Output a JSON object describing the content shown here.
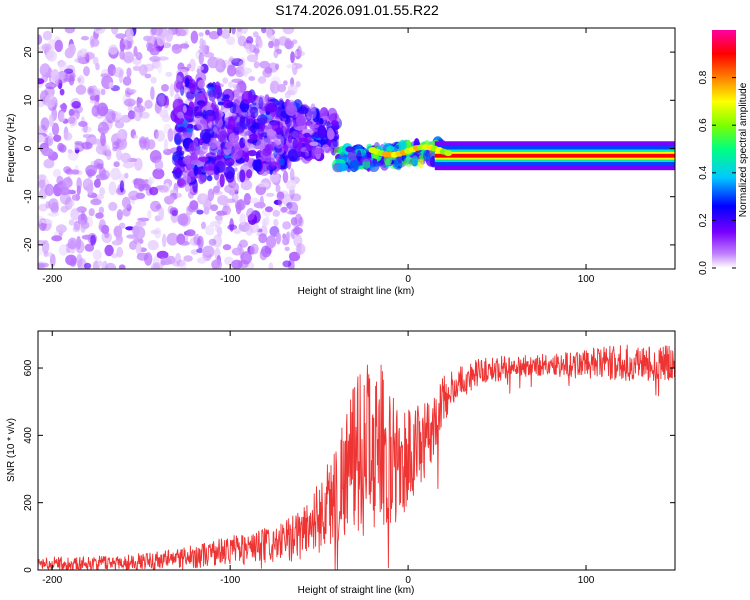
{
  "title": "S174.2026.091.01.55.R22",
  "chart_data": [
    {
      "type": "heatmap",
      "xlabel": "Height of straight line (km)",
      "ylabel": "Frequency (Hz)",
      "xlim": [
        -208,
        150
      ],
      "ylim": [
        -25,
        25
      ],
      "xticks": [
        -200,
        -100,
        0,
        100
      ],
      "yticks": [
        -20,
        -10,
        0,
        10,
        20
      ],
      "xtick_labels": [
        "-200",
        "-100",
        "0",
        "100"
      ],
      "ytick_labels": [
        "-20",
        "-10",
        "0",
        "10",
        "20"
      ],
      "colorbar": {
        "label": "Normalized spectral amplitude",
        "range": [
          0,
          1
        ],
        "ticks": [
          0.0,
          0.2,
          0.4,
          0.6,
          0.8
        ],
        "tick_labels": [
          "0.0",
          "0.2",
          "0.4",
          "0.6",
          "0.8"
        ],
        "colors": [
          "#ffffff",
          "#c080ff",
          "#7a00ff",
          "#0000ff",
          "#00c8ff",
          "#00ff80",
          "#7fff00",
          "#ffff00",
          "#ff8000",
          "#ff0000",
          "#ff00a0"
        ]
      },
      "line_of_sight_frequency_hz": -1.5,
      "features": [
        {
          "description": "scattered noise",
          "x_range": [
            -208,
            -60
          ],
          "freq_range": [
            -25,
            25
          ],
          "amplitude": 0.05
        },
        {
          "description": "diffuse multipath cluster",
          "x_range": [
            -130,
            -40
          ],
          "freq_range": [
            -15,
            15
          ],
          "amplitude": 0.15
        },
        {
          "description": "converging signal",
          "x_range": [
            -40,
            20
          ],
          "freq_range": [
            -5,
            3
          ],
          "amplitude": 0.35
        },
        {
          "description": "stable single tone",
          "x_range": [
            20,
            150
          ],
          "freq_range": [
            -2,
            -1
          ],
          "amplitude": 0.95
        }
      ]
    },
    {
      "type": "line",
      "xlabel": "Height of straight line (km)",
      "ylabel": "SNR (10 * v/v)",
      "xlim": [
        -208,
        150
      ],
      "ylim": [
        0,
        710
      ],
      "xticks": [
        -200,
        -100,
        0,
        100
      ],
      "yticks": [
        0,
        200,
        400,
        600
      ],
      "xtick_labels": [
        "-200",
        "-100",
        "0",
        "100"
      ],
      "ytick_labels": [
        "0",
        "200",
        "400",
        "600"
      ],
      "color": "#ee3333",
      "series": [
        {
          "name": "SNR",
          "x": [
            -208,
            -180,
            -150,
            -120,
            -100,
            -80,
            -70,
            -60,
            -50,
            -40,
            -35,
            -30,
            -25,
            -20,
            -15,
            -10,
            -5,
            0,
            5,
            10,
            15,
            20,
            30,
            40,
            60,
            80,
            100,
            120,
            150
          ],
          "y": [
            20,
            20,
            25,
            40,
            60,
            70,
            80,
            110,
            160,
            230,
            300,
            330,
            360,
            360,
            370,
            330,
            300,
            340,
            350,
            380,
            440,
            510,
            560,
            590,
            605,
            610,
            612,
            615,
            615
          ],
          "noise": [
            20,
            20,
            25,
            35,
            45,
            55,
            60,
            80,
            110,
            160,
            200,
            230,
            260,
            260,
            240,
            200,
            180,
            160,
            140,
            120,
            90,
            70,
            50,
            40,
            35,
            35,
            45,
            55,
            55
          ]
        }
      ]
    }
  ]
}
